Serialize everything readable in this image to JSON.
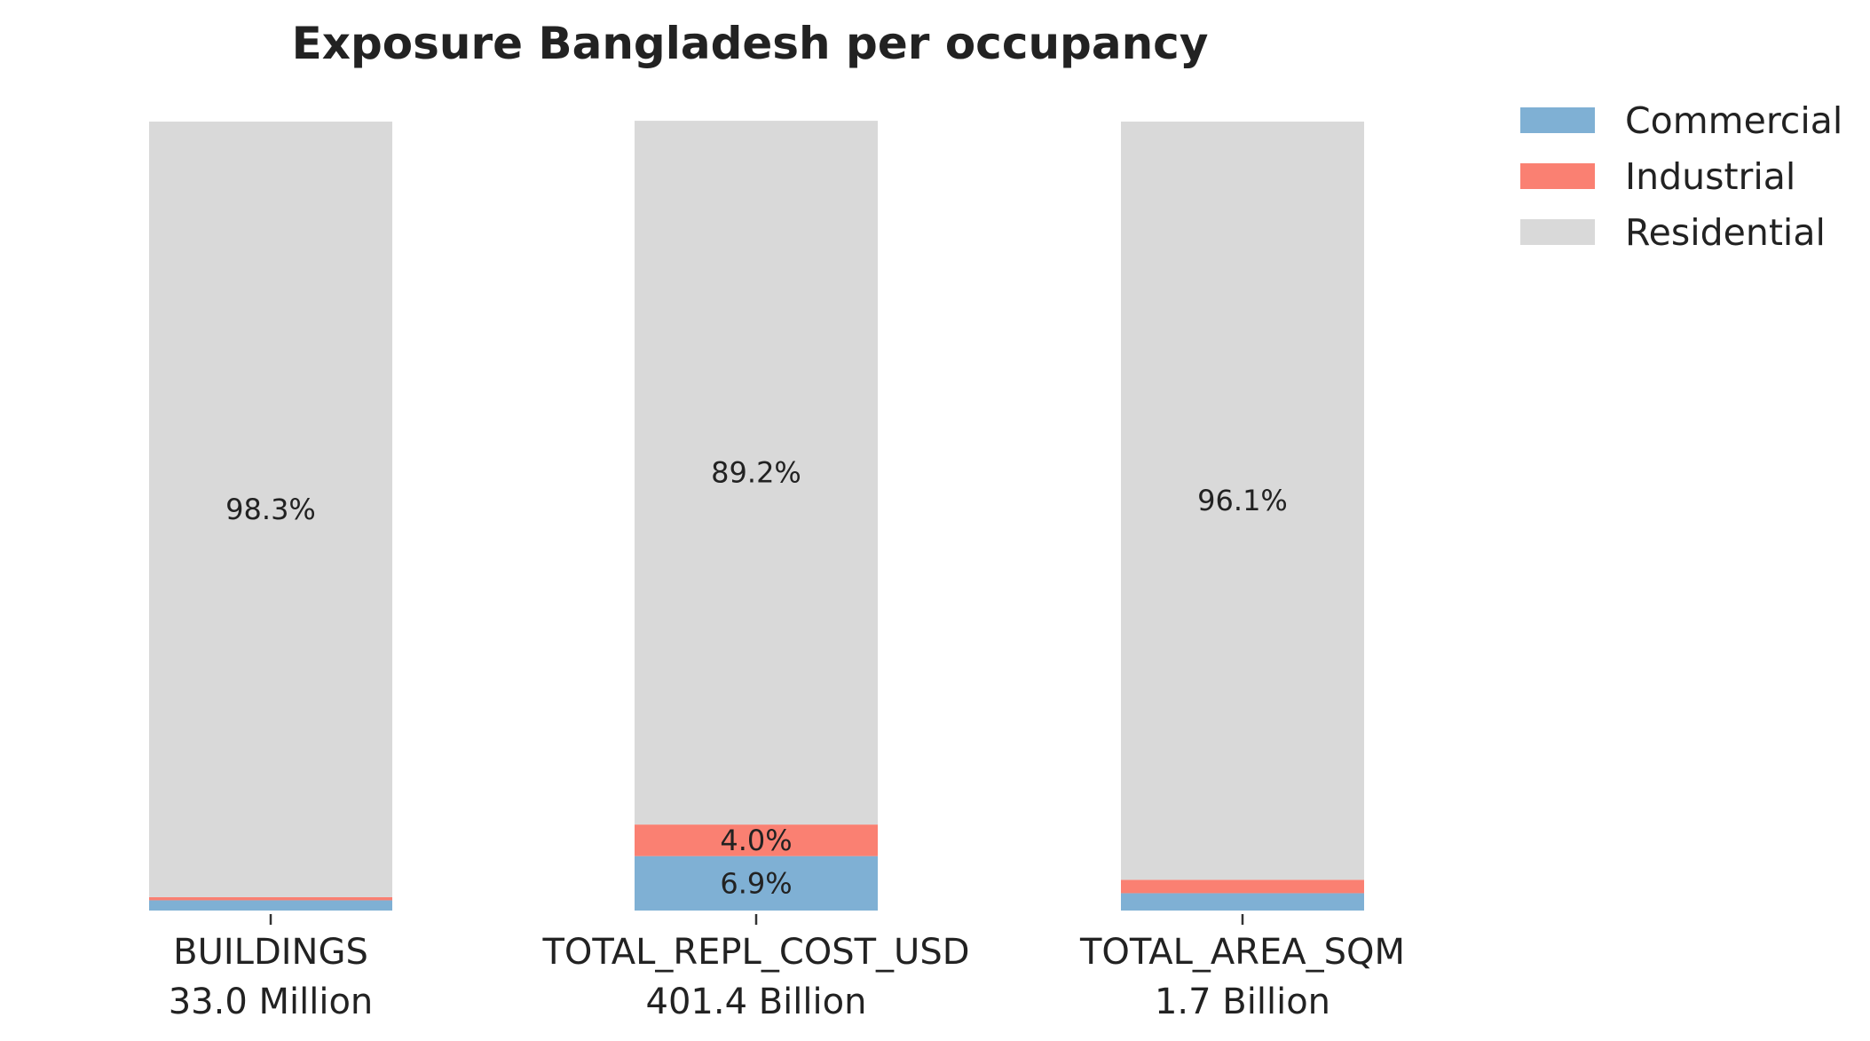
{
  "chart_data": {
    "type": "bar",
    "stacked": true,
    "normalized": true,
    "title": "Exposure Bangladesh per occupancy",
    "xlabel": "",
    "ylabel": "",
    "ylim": [
      0,
      100
    ],
    "grid": false,
    "legend_position": "top-right",
    "categories": [
      "BUILDINGS",
      "TOTAL_REPL_COST_USD",
      "TOTAL_AREA_SQM"
    ],
    "category_totals": [
      "33.0 Million",
      "401.4 Billion",
      "1.7 Billion"
    ],
    "series": [
      {
        "name": "Commercial",
        "color": "#7fb0d4",
        "values": [
          1.3,
          6.9,
          2.2
        ],
        "labels": [
          "",
          "6.9%",
          ""
        ]
      },
      {
        "name": "Industrial",
        "color": "#fa8072",
        "values": [
          0.4,
          4.0,
          1.7
        ],
        "labels": [
          "",
          "4.0%",
          ""
        ]
      },
      {
        "name": "Residential",
        "color": "#d9d9d9",
        "values": [
          98.3,
          89.2,
          96.1
        ],
        "labels": [
          "98.3%",
          "89.2%",
          "96.1%"
        ]
      }
    ]
  }
}
